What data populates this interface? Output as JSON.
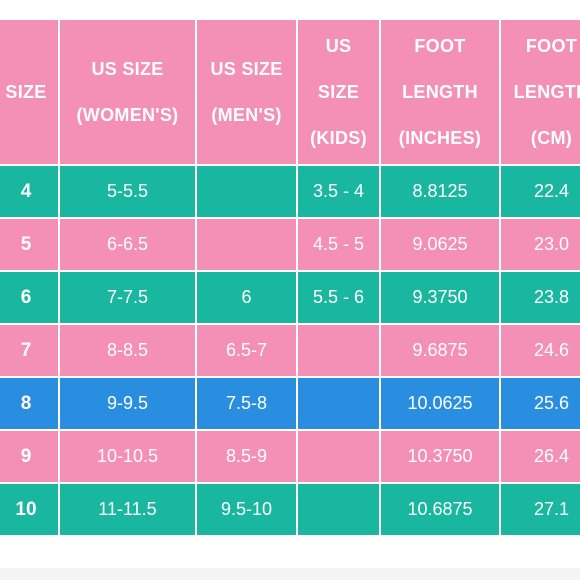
{
  "headers": [
    {
      "lines": [
        "SIZE"
      ]
    },
    {
      "lines": [
        "US SIZE",
        "(WOMEN'S)"
      ]
    },
    {
      "lines": [
        "US SIZE",
        "(MEN'S)"
      ]
    },
    {
      "lines": [
        "US",
        "SIZE",
        "(KIDS)"
      ]
    },
    {
      "lines": [
        "FOOT",
        "LENGTH",
        "(INCHES)"
      ]
    },
    {
      "lines": [
        "FOOT",
        "LENGTH",
        "(CM)"
      ]
    }
  ],
  "rows": [
    {
      "style": "teal",
      "cells": [
        "4",
        "5-5.5",
        "",
        "3.5 - 4",
        "8.8125",
        "22.4"
      ]
    },
    {
      "style": "pink",
      "cells": [
        "5",
        "6-6.5",
        "",
        "4.5 - 5",
        "9.0625",
        "23.0"
      ]
    },
    {
      "style": "teal",
      "cells": [
        "6",
        "7-7.5",
        "6",
        "5.5 - 6",
        "9.3750",
        "23.8"
      ]
    },
    {
      "style": "pink",
      "cells": [
        "7",
        "8-8.5",
        "6.5-7",
        "",
        "9.6875",
        "24.6"
      ]
    },
    {
      "style": "blue",
      "cells": [
        "8",
        "9-9.5",
        "7.5-8",
        "",
        "10.0625",
        "25.6"
      ]
    },
    {
      "style": "pink",
      "cells": [
        "9",
        "10-10.5",
        "8.5-9",
        "",
        "10.3750",
        "26.4"
      ]
    },
    {
      "style": "teal",
      "cells": [
        "10",
        "11-11.5",
        "9.5-10",
        "",
        "10.6875",
        "27.1"
      ]
    }
  ],
  "colors": {
    "pink": "#f48fb6",
    "teal": "#1ab7a0",
    "blue": "#2a8ee0",
    "text": "#ffffff"
  }
}
